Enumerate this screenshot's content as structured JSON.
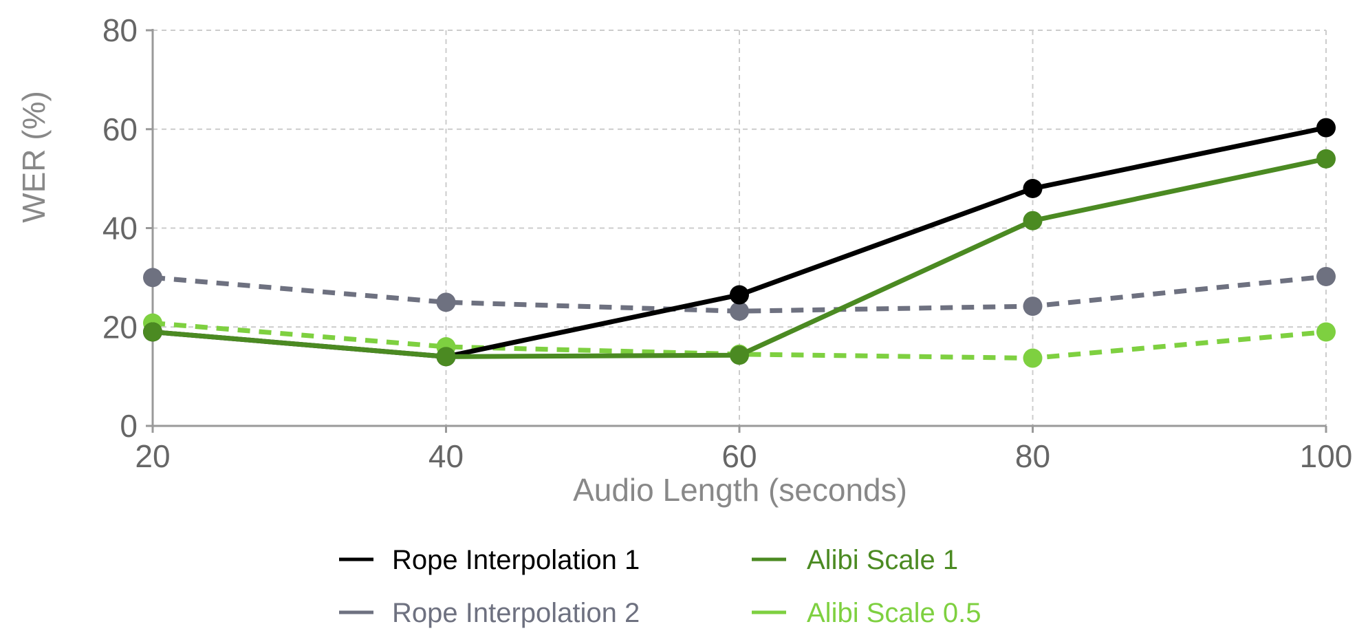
{
  "chart_data": {
    "type": "line",
    "title": "",
    "xlabel": "Audio Length (seconds)",
    "ylabel": "WER (%)",
    "x": [
      20,
      40,
      60,
      80,
      100
    ],
    "xticks": [
      "20",
      "40",
      "60",
      "80",
      "100"
    ],
    "yticks": [
      "0",
      "20",
      "40",
      "60",
      "80"
    ],
    "xlim": [
      20,
      100
    ],
    "ylim": [
      0,
      80
    ],
    "grid": true,
    "legend_position": "bottom",
    "series": [
      {
        "name": "Rope Interpolation 1",
        "color": "#000000",
        "dash": "solid",
        "values": [
          19,
          14,
          26.5,
          48,
          60.3
        ]
      },
      {
        "name": "Rope Interpolation 2",
        "color": "#6e7180",
        "dash": "dashed",
        "values": [
          30,
          25,
          23.2,
          24.2,
          30.2
        ]
      },
      {
        "name": "Alibi Scale 1",
        "color": "#4b8a22",
        "dash": "solid",
        "values": [
          19,
          14,
          14.3,
          41.5,
          54
        ]
      },
      {
        "name": "Alibi Scale 0.5",
        "color": "#7ed040",
        "dash": "dashed",
        "values": [
          20.8,
          16,
          14.5,
          13.7,
          19
        ]
      }
    ]
  }
}
